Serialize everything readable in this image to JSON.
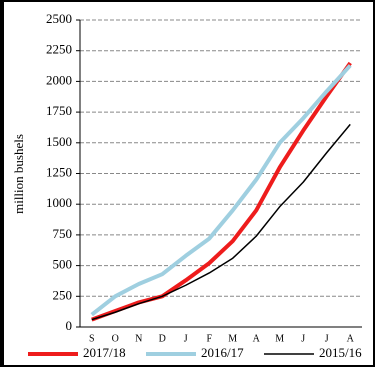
{
  "chart_data": {
    "type": "line",
    "y_label": "million bushels",
    "categories": [
      "S",
      "O",
      "N",
      "D",
      "J",
      "F",
      "M",
      "A",
      "M",
      "J",
      "J",
      "A"
    ],
    "series": [
      {
        "name": "2017/18",
        "color": "#ee1c1c",
        "width": 4,
        "values": [
          60,
          130,
          200,
          250,
          380,
          520,
          700,
          950,
          1300,
          1600,
          1880,
          2150
        ]
      },
      {
        "name": "2016/17",
        "color": "#9fcfe0",
        "width": 4,
        "values": [
          100,
          250,
          350,
          430,
          580,
          720,
          950,
          1200,
          1500,
          1700,
          1920,
          2130
        ]
      },
      {
        "name": "2015/16",
        "color": "#000000",
        "width": 1.5,
        "values": [
          60,
          120,
          190,
          250,
          340,
          440,
          560,
          740,
          980,
          1180,
          1420,
          1650
        ]
      }
    ],
    "ylim": [
      0,
      2500
    ],
    "yticks": [
      0,
      250,
      500,
      750,
      1000,
      1250,
      1500,
      1750,
      2000,
      2250,
      2500
    ],
    "grid": true,
    "legend": "bottom"
  }
}
